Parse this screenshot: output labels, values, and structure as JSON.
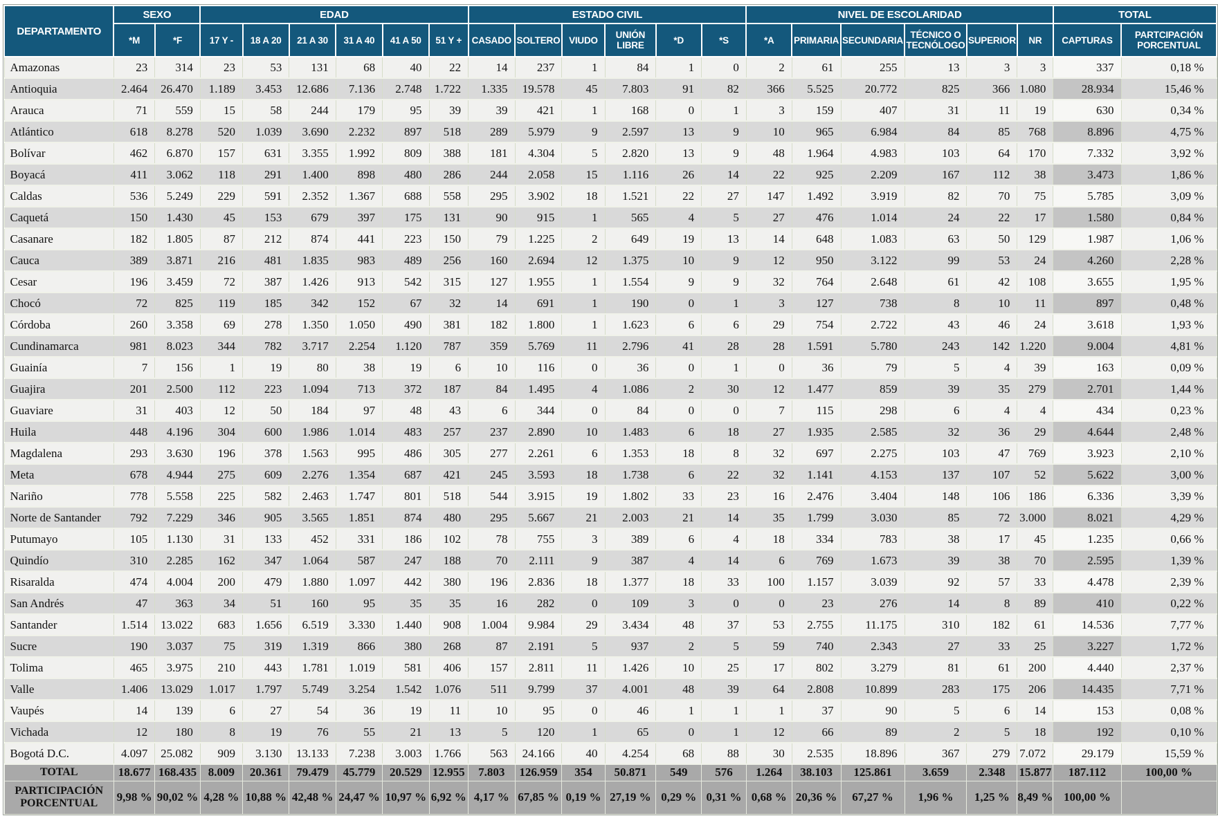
{
  "header": {
    "departamento": "DEPARTAMENTO",
    "groups": [
      {
        "label": "SEXO",
        "span": 2
      },
      {
        "label": "EDAD",
        "span": 6
      },
      {
        "label": "ESTADO CIVIL",
        "span": 6
      },
      {
        "label": "NIVEL DE ESCOLARIDAD",
        "span": 6
      },
      {
        "label": "TOTAL",
        "span": 2
      }
    ],
    "subcolumns": [
      "*M",
      "*F",
      "17 Y -",
      "18 A 20",
      "21 A 30",
      "31 A 40",
      "41 A 50",
      "51 Y +",
      "CASADO",
      "SOLTERO",
      "VIUDO",
      "UNIÓN LIBRE",
      "*D",
      "*S",
      "*A",
      "PRIMARIA",
      "SECUNDARIA",
      "TÉCNICO O TECNÓLOGO",
      "SUPERIOR",
      "NR",
      "CAPTURAS",
      "PARTCIPACIÓN PORCENTUAL"
    ]
  },
  "rows": [
    {
      "name": "Amazonas",
      "values": [
        "23",
        "314",
        "23",
        "53",
        "131",
        "68",
        "40",
        "22",
        "14",
        "237",
        "1",
        "84",
        "1",
        "0",
        "2",
        "61",
        "255",
        "13",
        "3",
        "3",
        "337",
        "0,18 %"
      ]
    },
    {
      "name": "Antioquia",
      "values": [
        "2.464",
        "26.470",
        "1.189",
        "3.453",
        "12.686",
        "7.136",
        "2.748",
        "1.722",
        "1.335",
        "19.578",
        "45",
        "7.803",
        "91",
        "82",
        "366",
        "5.525",
        "20.772",
        "825",
        "366",
        "1.080",
        "28.934",
        "15,46 %"
      ]
    },
    {
      "name": "Arauca",
      "values": [
        "71",
        "559",
        "15",
        "58",
        "244",
        "179",
        "95",
        "39",
        "39",
        "421",
        "1",
        "168",
        "0",
        "1",
        "3",
        "159",
        "407",
        "31",
        "11",
        "19",
        "630",
        "0,34 %"
      ]
    },
    {
      "name": "Atlántico",
      "values": [
        "618",
        "8.278",
        "520",
        "1.039",
        "3.690",
        "2.232",
        "897",
        "518",
        "289",
        "5.979",
        "9",
        "2.597",
        "13",
        "9",
        "10",
        "965",
        "6.984",
        "84",
        "85",
        "768",
        "8.896",
        "4,75 %"
      ]
    },
    {
      "name": "Bolívar",
      "values": [
        "462",
        "6.870",
        "157",
        "631",
        "3.355",
        "1.992",
        "809",
        "388",
        "181",
        "4.304",
        "5",
        "2.820",
        "13",
        "9",
        "48",
        "1.964",
        "4.983",
        "103",
        "64",
        "170",
        "7.332",
        "3,92 %"
      ]
    },
    {
      "name": "Boyacá",
      "values": [
        "411",
        "3.062",
        "118",
        "291",
        "1.400",
        "898",
        "480",
        "286",
        "244",
        "2.058",
        "15",
        "1.116",
        "26",
        "14",
        "22",
        "925",
        "2.209",
        "167",
        "112",
        "38",
        "3.473",
        "1,86 %"
      ]
    },
    {
      "name": "Caldas",
      "values": [
        "536",
        "5.249",
        "229",
        "591",
        "2.352",
        "1.367",
        "688",
        "558",
        "295",
        "3.902",
        "18",
        "1.521",
        "22",
        "27",
        "147",
        "1.492",
        "3.919",
        "82",
        "70",
        "75",
        "5.785",
        "3,09 %"
      ]
    },
    {
      "name": "Caquetá",
      "values": [
        "150",
        "1.430",
        "45",
        "153",
        "679",
        "397",
        "175",
        "131",
        "90",
        "915",
        "1",
        "565",
        "4",
        "5",
        "27",
        "476",
        "1.014",
        "24",
        "22",
        "17",
        "1.580",
        "0,84 %"
      ]
    },
    {
      "name": "Casanare",
      "values": [
        "182",
        "1.805",
        "87",
        "212",
        "874",
        "441",
        "223",
        "150",
        "79",
        "1.225",
        "2",
        "649",
        "19",
        "13",
        "14",
        "648",
        "1.083",
        "63",
        "50",
        "129",
        "1.987",
        "1,06 %"
      ]
    },
    {
      "name": "Cauca",
      "values": [
        "389",
        "3.871",
        "216",
        "481",
        "1.835",
        "983",
        "489",
        "256",
        "160",
        "2.694",
        "12",
        "1.375",
        "10",
        "9",
        "12",
        "950",
        "3.122",
        "99",
        "53",
        "24",
        "4.260",
        "2,28 %"
      ]
    },
    {
      "name": "Cesar",
      "values": [
        "196",
        "3.459",
        "72",
        "387",
        "1.426",
        "913",
        "542",
        "315",
        "127",
        "1.955",
        "1",
        "1.554",
        "9",
        "9",
        "32",
        "764",
        "2.648",
        "61",
        "42",
        "108",
        "3.655",
        "1,95 %"
      ]
    },
    {
      "name": "Chocó",
      "values": [
        "72",
        "825",
        "119",
        "185",
        "342",
        "152",
        "67",
        "32",
        "14",
        "691",
        "1",
        "190",
        "0",
        "1",
        "3",
        "127",
        "738",
        "8",
        "10",
        "11",
        "897",
        "0,48 %"
      ]
    },
    {
      "name": "Córdoba",
      "values": [
        "260",
        "3.358",
        "69",
        "278",
        "1.350",
        "1.050",
        "490",
        "381",
        "182",
        "1.800",
        "1",
        "1.623",
        "6",
        "6",
        "29",
        "754",
        "2.722",
        "43",
        "46",
        "24",
        "3.618",
        "1,93 %"
      ]
    },
    {
      "name": "Cundinamarca",
      "values": [
        "981",
        "8.023",
        "344",
        "782",
        "3.717",
        "2.254",
        "1.120",
        "787",
        "359",
        "5.769",
        "11",
        "2.796",
        "41",
        "28",
        "28",
        "1.591",
        "5.780",
        "243",
        "142",
        "1.220",
        "9.004",
        "4,81 %"
      ]
    },
    {
      "name": "Guainía",
      "values": [
        "7",
        "156",
        "1",
        "19",
        "80",
        "38",
        "19",
        "6",
        "10",
        "116",
        "0",
        "36",
        "0",
        "1",
        "0",
        "36",
        "79",
        "5",
        "4",
        "39",
        "163",
        "0,09 %"
      ]
    },
    {
      "name": "Guajira",
      "values": [
        "201",
        "2.500",
        "112",
        "223",
        "1.094",
        "713",
        "372",
        "187",
        "84",
        "1.495",
        "4",
        "1.086",
        "2",
        "30",
        "12",
        "1.477",
        "859",
        "39",
        "35",
        "279",
        "2.701",
        "1,44 %"
      ]
    },
    {
      "name": "Guaviare",
      "values": [
        "31",
        "403",
        "12",
        "50",
        "184",
        "97",
        "48",
        "43",
        "6",
        "344",
        "0",
        "84",
        "0",
        "0",
        "7",
        "115",
        "298",
        "6",
        "4",
        "4",
        "434",
        "0,23 %"
      ]
    },
    {
      "name": "Huila",
      "values": [
        "448",
        "4.196",
        "304",
        "600",
        "1.986",
        "1.014",
        "483",
        "257",
        "237",
        "2.890",
        "10",
        "1.483",
        "6",
        "18",
        "27",
        "1.935",
        "2.585",
        "32",
        "36",
        "29",
        "4.644",
        "2,48 %"
      ]
    },
    {
      "name": "Magdalena",
      "values": [
        "293",
        "3.630",
        "196",
        "378",
        "1.563",
        "995",
        "486",
        "305",
        "277",
        "2.261",
        "6",
        "1.353",
        "18",
        "8",
        "32",
        "697",
        "2.275",
        "103",
        "47",
        "769",
        "3.923",
        "2,10 %"
      ]
    },
    {
      "name": "Meta",
      "values": [
        "678",
        "4.944",
        "275",
        "609",
        "2.276",
        "1.354",
        "687",
        "421",
        "245",
        "3.593",
        "18",
        "1.738",
        "6",
        "22",
        "32",
        "1.141",
        "4.153",
        "137",
        "107",
        "52",
        "5.622",
        "3,00 %"
      ]
    },
    {
      "name": "Nariño",
      "values": [
        "778",
        "5.558",
        "225",
        "582",
        "2.463",
        "1.747",
        "801",
        "518",
        "544",
        "3.915",
        "19",
        "1.802",
        "33",
        "23",
        "16",
        "2.476",
        "3.404",
        "148",
        "106",
        "186",
        "6.336",
        "3,39 %"
      ]
    },
    {
      "name": "Norte de Santander",
      "values": [
        "792",
        "7.229",
        "346",
        "905",
        "3.565",
        "1.851",
        "874",
        "480",
        "295",
        "5.667",
        "21",
        "2.003",
        "21",
        "14",
        "35",
        "1.799",
        "3.030",
        "85",
        "72",
        "3.000",
        "8.021",
        "4,29 %"
      ]
    },
    {
      "name": "Putumayo",
      "values": [
        "105",
        "1.130",
        "31",
        "133",
        "452",
        "331",
        "186",
        "102",
        "78",
        "755",
        "3",
        "389",
        "6",
        "4",
        "18",
        "334",
        "783",
        "38",
        "17",
        "45",
        "1.235",
        "0,66 %"
      ]
    },
    {
      "name": "Quindío",
      "values": [
        "310",
        "2.285",
        "162",
        "347",
        "1.064",
        "587",
        "247",
        "188",
        "70",
        "2.111",
        "9",
        "387",
        "4",
        "14",
        "6",
        "769",
        "1.673",
        "39",
        "38",
        "70",
        "2.595",
        "1,39 %"
      ]
    },
    {
      "name": "Risaralda",
      "values": [
        "474",
        "4.004",
        "200",
        "479",
        "1.880",
        "1.097",
        "442",
        "380",
        "196",
        "2.836",
        "18",
        "1.377",
        "18",
        "33",
        "100",
        "1.157",
        "3.039",
        "92",
        "57",
        "33",
        "4.478",
        "2,39 %"
      ]
    },
    {
      "name": "San Andrés",
      "values": [
        "47",
        "363",
        "34",
        "51",
        "160",
        "95",
        "35",
        "35",
        "16",
        "282",
        "0",
        "109",
        "3",
        "0",
        "0",
        "23",
        "276",
        "14",
        "8",
        "89",
        "410",
        "0,22 %"
      ]
    },
    {
      "name": "Santander",
      "values": [
        "1.514",
        "13.022",
        "683",
        "1.656",
        "6.519",
        "3.330",
        "1.440",
        "908",
        "1.004",
        "9.984",
        "29",
        "3.434",
        "48",
        "37",
        "53",
        "2.755",
        "11.175",
        "310",
        "182",
        "61",
        "14.536",
        "7,77 %"
      ]
    },
    {
      "name": "Sucre",
      "values": [
        "190",
        "3.037",
        "75",
        "319",
        "1.319",
        "866",
        "380",
        "268",
        "87",
        "2.191",
        "5",
        "937",
        "2",
        "5",
        "59",
        "740",
        "2.343",
        "27",
        "33",
        "25",
        "3.227",
        "1,72 %"
      ]
    },
    {
      "name": "Tolima",
      "values": [
        "465",
        "3.975",
        "210",
        "443",
        "1.781",
        "1.019",
        "581",
        "406",
        "157",
        "2.811",
        "11",
        "1.426",
        "10",
        "25",
        "17",
        "802",
        "3.279",
        "81",
        "61",
        "200",
        "4.440",
        "2,37 %"
      ]
    },
    {
      "name": "Valle",
      "values": [
        "1.406",
        "13.029",
        "1.017",
        "1.797",
        "5.749",
        "3.254",
        "1.542",
        "1.076",
        "511",
        "9.799",
        "37",
        "4.001",
        "48",
        "39",
        "64",
        "2.808",
        "10.899",
        "283",
        "175",
        "206",
        "14.435",
        "7,71 %"
      ]
    },
    {
      "name": "Vaupés",
      "values": [
        "14",
        "139",
        "6",
        "27",
        "54",
        "36",
        "19",
        "11",
        "10",
        "95",
        "0",
        "46",
        "1",
        "1",
        "1",
        "37",
        "90",
        "5",
        "6",
        "14",
        "153",
        "0,08 %"
      ]
    },
    {
      "name": "Vichada",
      "values": [
        "12",
        "180",
        "8",
        "19",
        "76",
        "55",
        "21",
        "13",
        "5",
        "120",
        "1",
        "65",
        "0",
        "1",
        "12",
        "66",
        "89",
        "2",
        "5",
        "18",
        "192",
        "0,10 %"
      ]
    },
    {
      "name": "Bogotá D.C.",
      "values": [
        "4.097",
        "25.082",
        "909",
        "3.130",
        "13.133",
        "7.238",
        "3.003",
        "1.766",
        "563",
        "24.166",
        "40",
        "4.254",
        "68",
        "88",
        "30",
        "2.535",
        "18.896",
        "367",
        "279",
        "7.072",
        "29.179",
        "15,59 %"
      ]
    }
  ],
  "total_row": {
    "label": "TOTAL",
    "values": [
      "18.677",
      "168.435",
      "8.009",
      "20.361",
      "79.479",
      "45.779",
      "20.529",
      "12.955",
      "7.803",
      "126.959",
      "354",
      "50.871",
      "549",
      "576",
      "1.264",
      "38.103",
      "125.861",
      "3.659",
      "2.348",
      "15.877",
      "187.112",
      "100,00 %"
    ]
  },
  "participation_row": {
    "label": "PARTICIPACIÓN PORCENTUAL",
    "values": [
      "9,98 %",
      "90,02 %",
      "4,28 %",
      "10,88 %",
      "42,48 %",
      "24,47 %",
      "10,97 %",
      "6,92 %",
      "4,17 %",
      "67,85 %",
      "0,19 %",
      "27,19 %",
      "0,29 %",
      "0,31 %",
      "0,68 %",
      "20,36 %",
      "67,27 %",
      "1,96 %",
      "1,25 %",
      "8,49 %",
      "100,00 %",
      ""
    ]
  },
  "colors": {
    "header_bg": "#14587C",
    "row_light": "#F1F1EF",
    "row_dark": "#D9D9D9",
    "capturas_light": "#F7F7F5",
    "capturas_dark": "#C4C4C4",
    "summary_bg": "#A9A9A9"
  }
}
